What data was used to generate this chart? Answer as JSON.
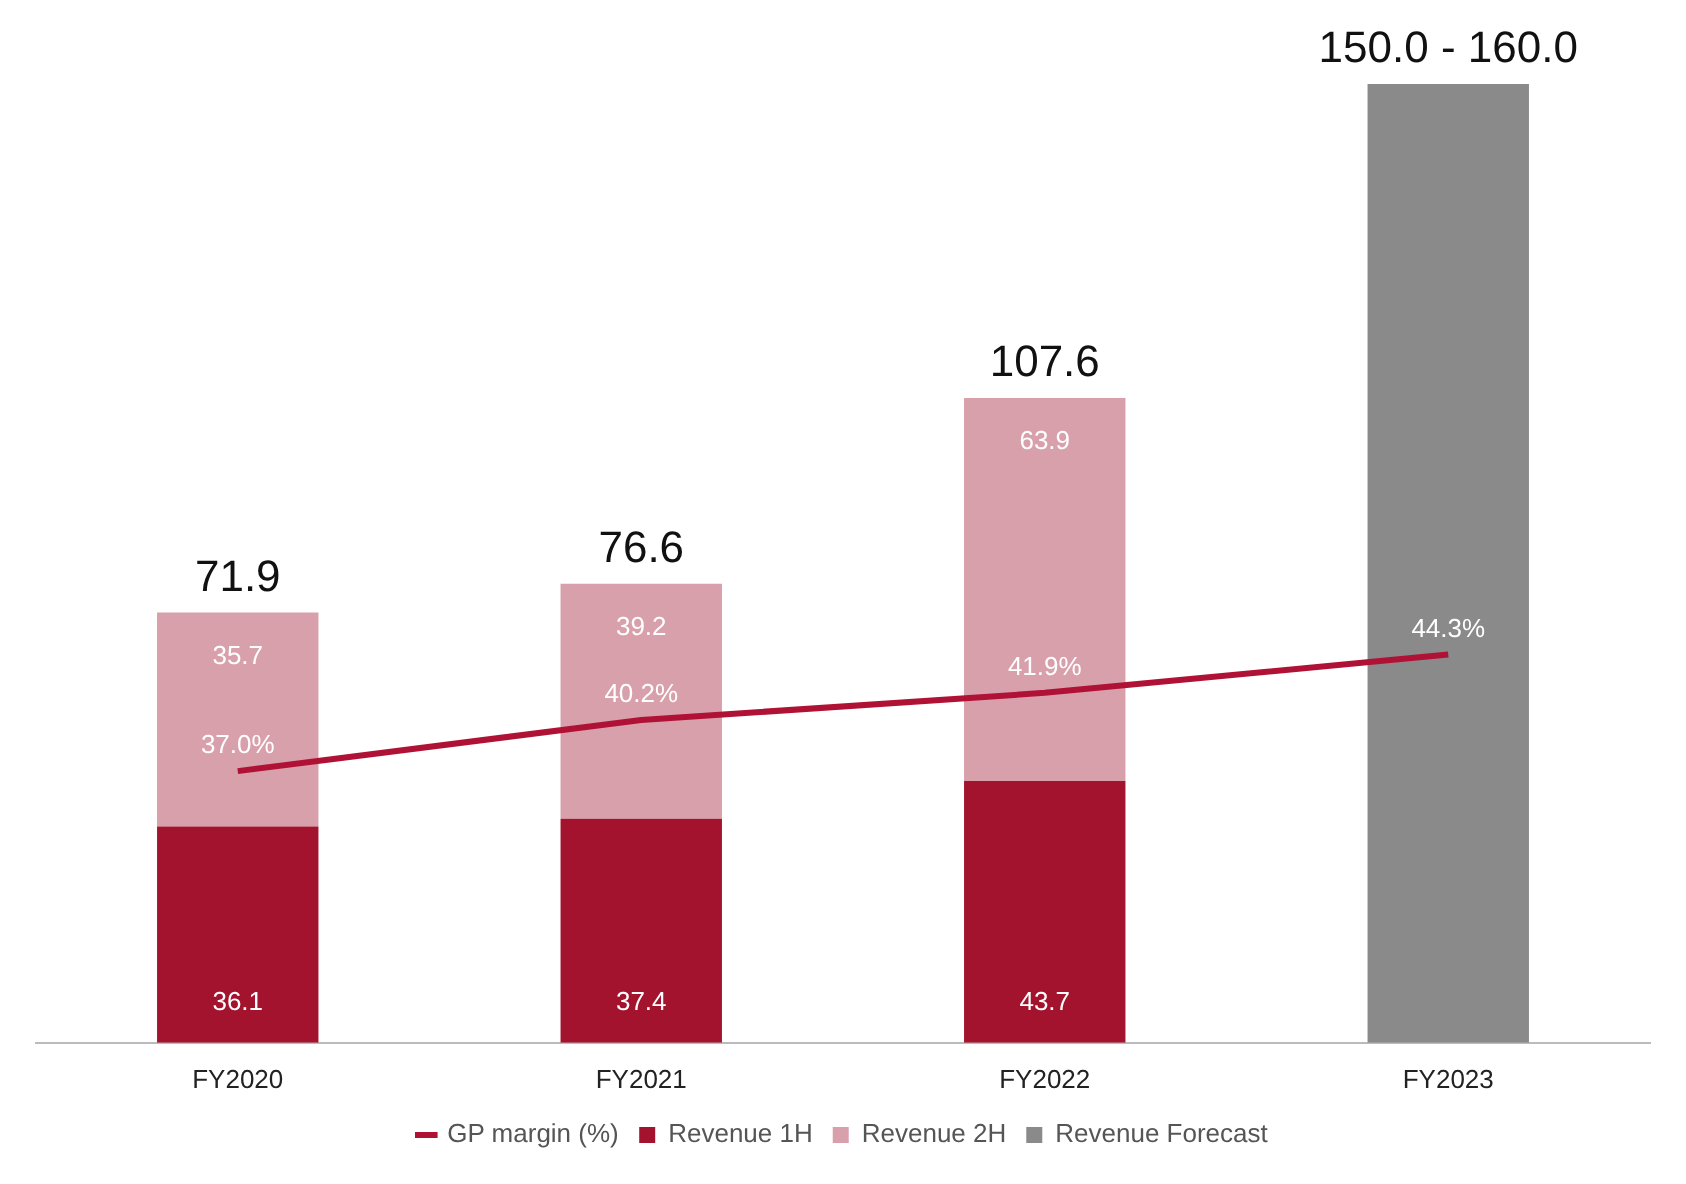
{
  "chart_data": {
    "type": "bar",
    "stacked": true,
    "categories": [
      "FY2020",
      "FY2021",
      "FY2022",
      "FY2023"
    ],
    "series": [
      {
        "name": "Revenue 1H",
        "color": "#a3132d",
        "values": [
          36.1,
          37.4,
          43.7,
          null
        ],
        "value_labels": [
          "36.1",
          "37.4",
          "43.7",
          null
        ]
      },
      {
        "name": "Revenue 2H",
        "color": "#d8a0aa",
        "values": [
          35.7,
          39.2,
          63.9,
          null
        ],
        "value_labels": [
          "35.7",
          "39.2",
          "63.9",
          null
        ]
      },
      {
        "name": "Revenue Forecast",
        "color": "#8a8a8a",
        "values": [
          null,
          null,
          null,
          160
        ]
      },
      {
        "name": "GP margin (%)",
        "type": "line",
        "axis": "y2",
        "color": "#b01236",
        "marker": "none",
        "values": [
          37.0,
          40.2,
          41.9,
          44.3
        ],
        "value_labels": [
          "37.0%",
          "40.2%",
          "41.9%",
          "44.3%"
        ]
      }
    ],
    "totals": [
      "71.9",
      "76.6",
      "107.6",
      "150.0 - 160.0"
    ],
    "tick_labels": "x",
    "grid": false,
    "legend": "bottom"
  }
}
